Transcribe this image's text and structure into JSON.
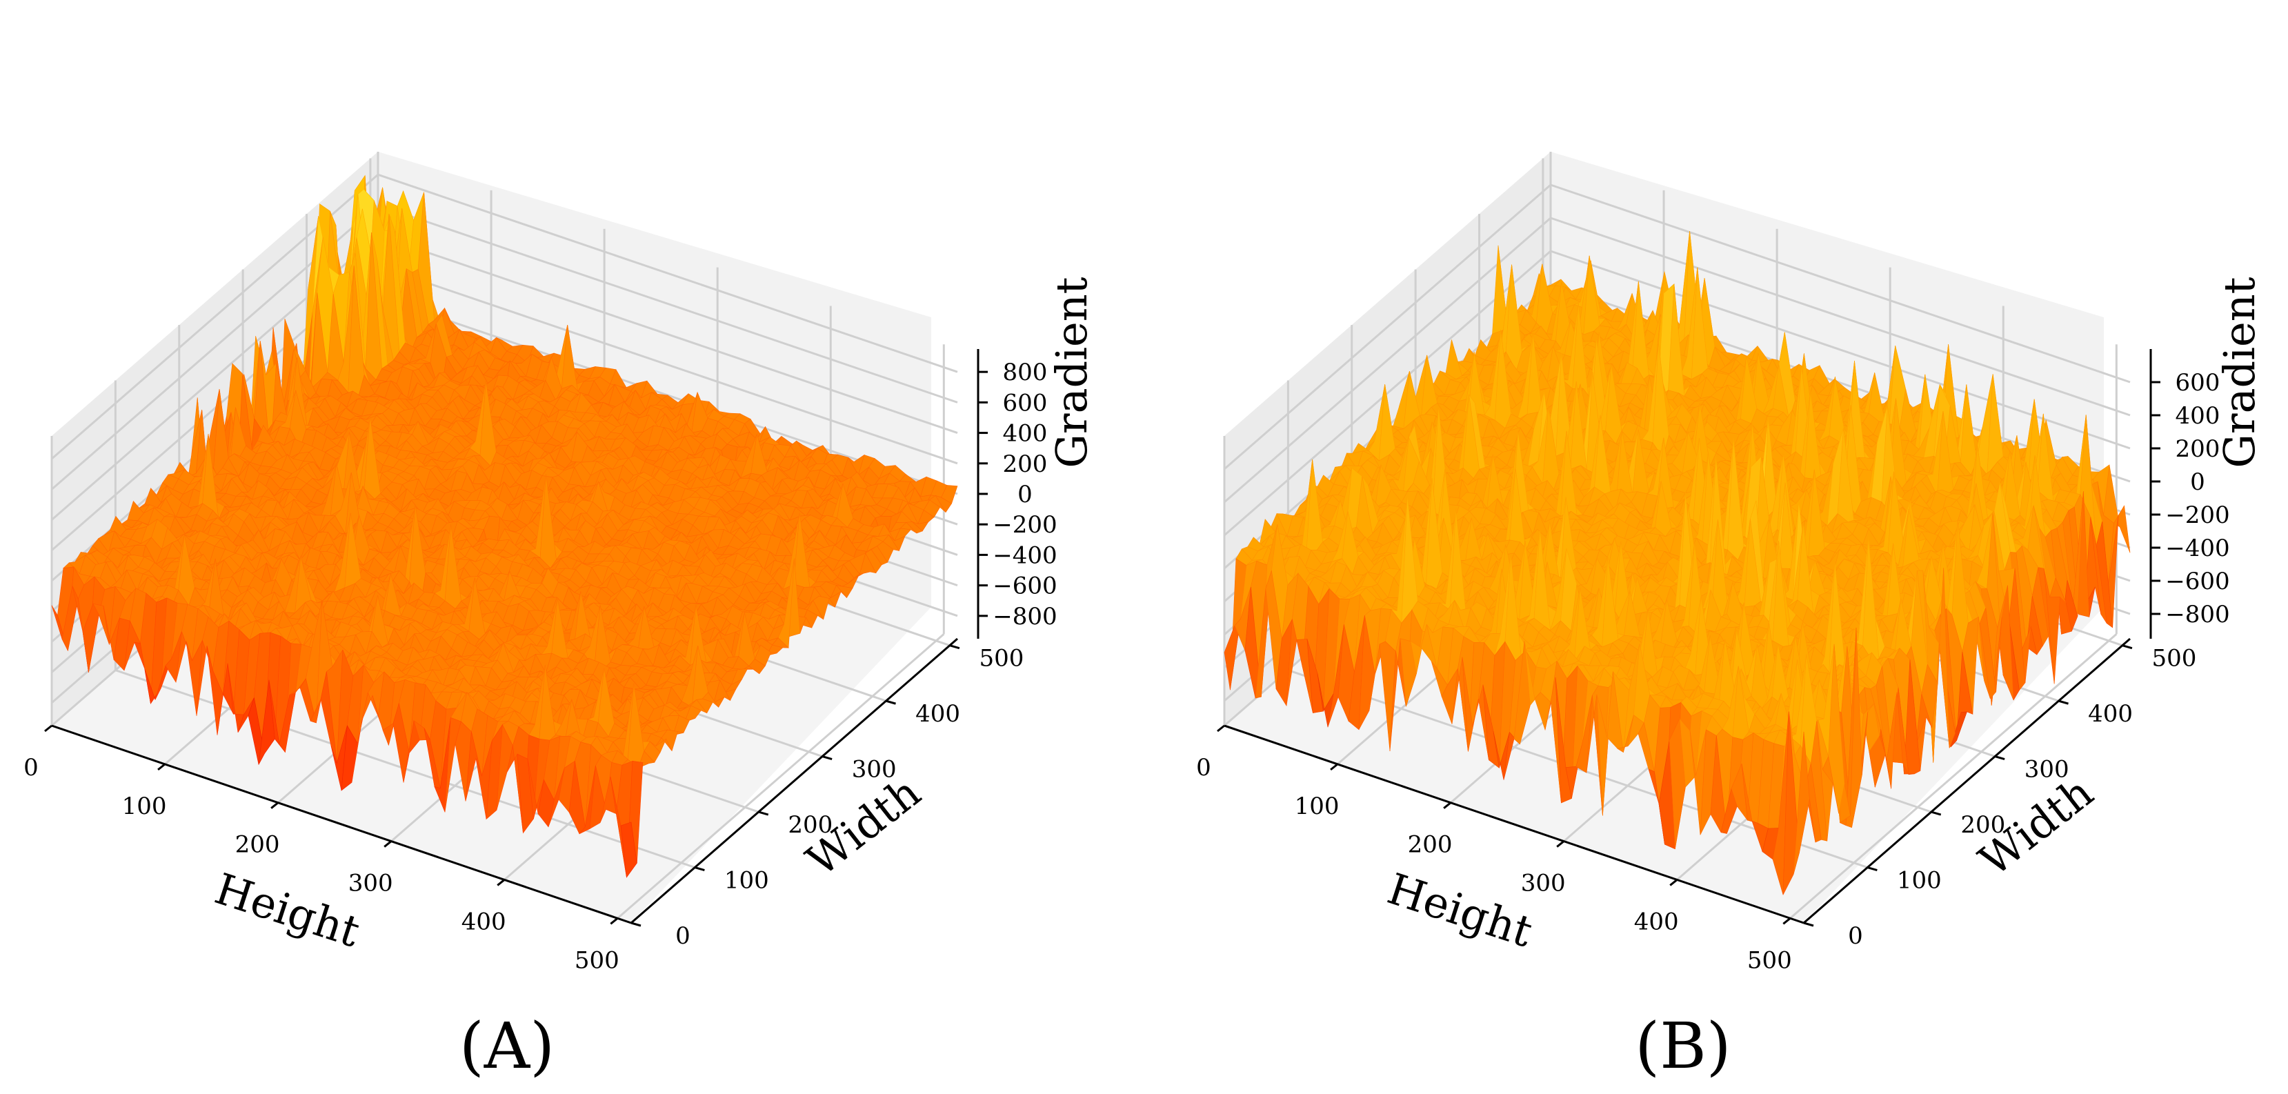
{
  "figure": {
    "panels": [
      "A",
      "B"
    ]
  },
  "chart_data": [
    {
      "type": "surface",
      "panel_label": "(A)",
      "xlabel": "Height",
      "ylabel": "Width",
      "zlabel": "Gradient",
      "x_ticks": [
        "0",
        "100",
        "200",
        "300",
        "400",
        "500"
      ],
      "y_ticks": [
        "0",
        "100",
        "200",
        "300",
        "400",
        "500"
      ],
      "z_ticks": [
        "−800",
        "−600",
        "−400",
        "−200",
        "0",
        "200",
        "400",
        "600",
        "800"
      ],
      "z_tick_values": [
        -800,
        -600,
        -400,
        -200,
        0,
        200,
        400,
        600,
        800
      ],
      "xlim": [
        0,
        512
      ],
      "ylim": [
        0,
        512
      ],
      "zlim": [
        -950,
        950
      ],
      "grid": true,
      "colormap": "hot",
      "colors": [
        "#8b0000",
        "#d40000",
        "#ff3b00",
        "#ff6a00",
        "#ff9a00",
        "#ffc400",
        "#ffee40"
      ],
      "approx_range": [
        -950,
        950
      ]
    },
    {
      "type": "surface",
      "panel_label": "(B)",
      "xlabel": "Height",
      "ylabel": "Width",
      "zlabel": "Gradient",
      "x_ticks": [
        "0",
        "100",
        "200",
        "300",
        "400",
        "500"
      ],
      "y_ticks": [
        "0",
        "100",
        "200",
        "300",
        "400",
        "500"
      ],
      "z_ticks": [
        "−800",
        "−600",
        "−400",
        "−200",
        "0",
        "200",
        "400",
        "600"
      ],
      "z_tick_values": [
        -800,
        -600,
        -400,
        -200,
        0,
        200,
        400,
        600
      ],
      "xlim": [
        0,
        512
      ],
      "ylim": [
        0,
        512
      ],
      "zlim": [
        -950,
        800
      ],
      "grid": true,
      "colormap": "hot",
      "colors": [
        "#b00000",
        "#e01b00",
        "#ff5a00",
        "#ff8a00",
        "#ffae00",
        "#ffd21a",
        "#fff36b"
      ],
      "approx_range": [
        -900,
        750
      ]
    }
  ]
}
